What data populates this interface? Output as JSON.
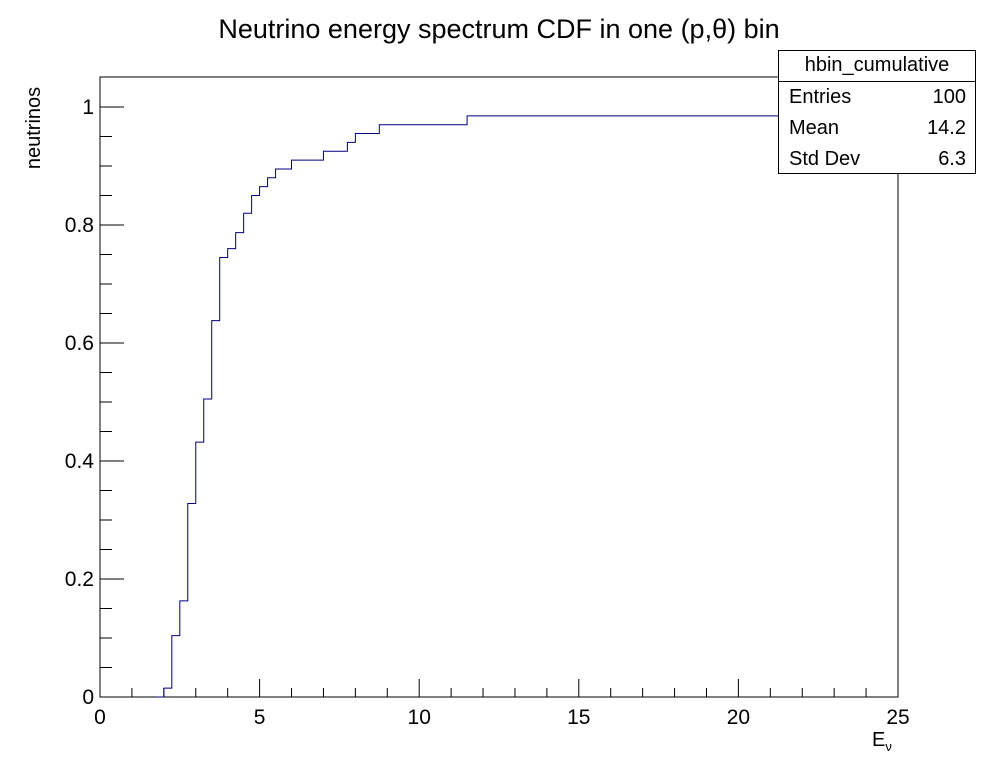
{
  "chart_data": {
    "type": "line",
    "title": "Neutrino energy spectrum CDF in one (p,θ) bin",
    "xlabel": "Eν",
    "ylabel": "neutrinos",
    "xlim": [
      0,
      25
    ],
    "ylim": [
      0,
      1.05
    ],
    "x_ticks": [
      "0",
      "5",
      "10",
      "15",
      "20",
      "25"
    ],
    "y_ticks": [
      "0",
      "0.2",
      "0.4",
      "0.6",
      "0.8",
      "1"
    ],
    "grid": false,
    "line_color": "#000080",
    "series": [
      {
        "step_x": [
          1.75,
          2.0,
          2.25,
          2.5,
          2.75,
          3.0,
          3.25,
          3.5,
          3.75,
          4.0,
          4.25,
          4.5,
          4.75,
          5.0,
          5.25,
          5.5,
          6.0,
          7.0,
          7.75,
          8.0,
          8.75,
          11.5,
          25.0
        ],
        "values": [
          0.0,
          0.015,
          0.104,
          0.163,
          0.328,
          0.432,
          0.505,
          0.638,
          0.745,
          0.76,
          0.787,
          0.82,
          0.85,
          0.865,
          0.88,
          0.895,
          0.91,
          0.925,
          0.94,
          0.955,
          0.97,
          0.985,
          1.0
        ]
      }
    ],
    "stats": {
      "name": "hbin_cumulative",
      "rows": [
        {
          "label": "Entries",
          "value": "100"
        },
        {
          "label": "Mean",
          "value": "14.2"
        },
        {
          "label": "Std Dev",
          "value": "6.3"
        }
      ]
    }
  }
}
